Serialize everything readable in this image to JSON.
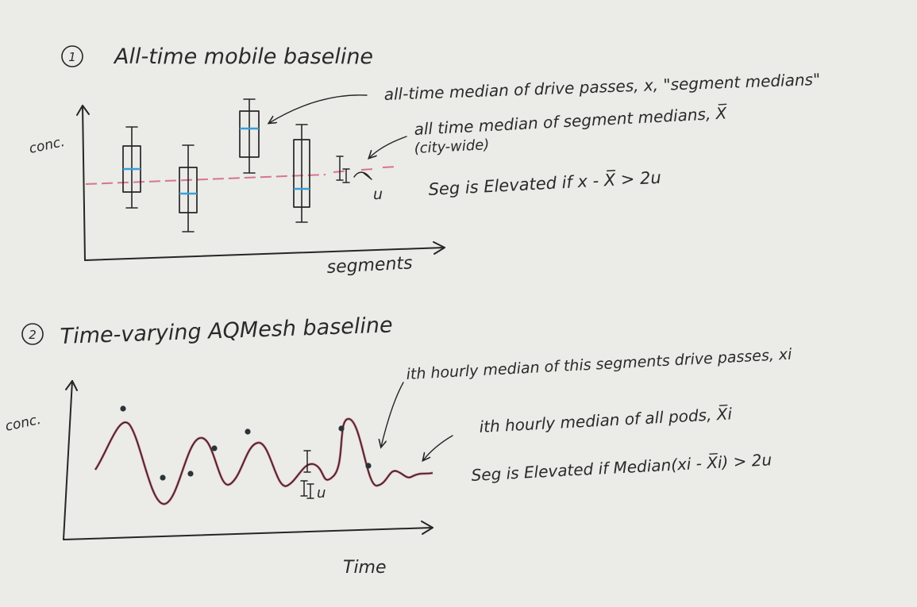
{
  "colors": {
    "paper": "#ebebe8",
    "ink": "#262626",
    "median_line": "#3a9fd8",
    "baseline": "#d7758c",
    "curve": "#c9475f"
  },
  "panel1": {
    "number": "1",
    "title": "All-time mobile baseline",
    "y_label": "conc.",
    "x_label": "segments",
    "annotation_segment_median": "all-time median of drive passes, x, \"segment medians\"",
    "annotation_citywide_line1": "all time median of segment medians, X̅",
    "annotation_citywide_line2": "(city-wide)",
    "uncertainty_label": "u",
    "rule": "Seg is Elevated if x - X̅ > 2u"
  },
  "panel2": {
    "number": "2",
    "title": "Time-varying AQMesh baseline",
    "y_label": "conc.",
    "x_label": "Time",
    "annotation_hourly_segment": "ith hourly median of this segments drive passes, xi",
    "annotation_hourly_pods": "ith hourly median of all pods, X̅i",
    "uncertainty_label": "u",
    "rule": "Seg is Elevated if Median(xi - X̅i) > 2u"
  }
}
